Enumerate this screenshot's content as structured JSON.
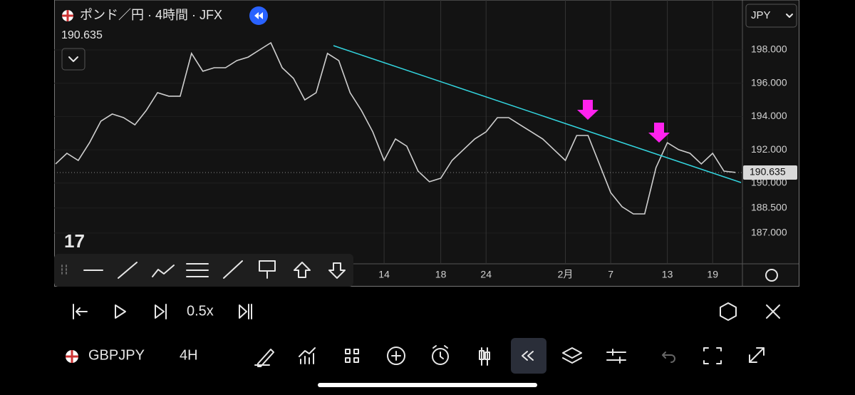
{
  "header": {
    "title": "ポンド／円 · 4時間 · JFX",
    "currency": "JPY"
  },
  "chart_data": {
    "type": "line",
    "categories": [
      null,
      null,
      null,
      null,
      null,
      null,
      null,
      null,
      null,
      null,
      null,
      null,
      null,
      null,
      null,
      null,
      null,
      null,
      null,
      null,
      null,
      null,
      null,
      null,
      null,
      null,
      null,
      null,
      null,
      "14",
      null,
      null,
      null,
      null,
      "18",
      null,
      null,
      null,
      "24",
      null,
      null,
      null,
      null,
      null,
      null,
      "2月",
      null,
      null,
      null,
      "7",
      null,
      null,
      null,
      null,
      "13",
      null,
      null,
      null,
      "19",
      null,
      null
    ],
    "series": [
      {
        "color": "#cfcfcf",
        "values": [
          191.15,
          191.79,
          191.36,
          192.43,
          193.72,
          194.15,
          193.93,
          193.5,
          194.36,
          195.43,
          195.22,
          195.22,
          197.79,
          196.72,
          196.93,
          196.93,
          197.36,
          197.57,
          198.0,
          198.43,
          196.93,
          196.29,
          195.0,
          195.43,
          197.79,
          197.36,
          195.43,
          194.36,
          193.08,
          191.36,
          192.65,
          192.22,
          190.72,
          190.08,
          190.29,
          191.36,
          192.01,
          192.65,
          193.08,
          193.93,
          193.93,
          193.5,
          193.08,
          192.65,
          192.01,
          191.36,
          192.86,
          192.86,
          191.15,
          189.43,
          188.58,
          188.15,
          188.15,
          190.93,
          192.43,
          192.01,
          191.79,
          191.15,
          191.79,
          190.72,
          190.64
        ]
      }
    ],
    "ylim": [
      185.15,
      201.0
    ],
    "yticks": [
      {
        "value": 187,
        "label": "187.000"
      },
      {
        "value": 188.5,
        "label": "188.500"
      },
      {
        "value": 190,
        "label": "190.000"
      },
      {
        "value": 192,
        "label": "192.000"
      },
      {
        "value": 194,
        "label": "194.000"
      },
      {
        "value": 196,
        "label": "196.000"
      },
      {
        "value": 198,
        "label": "198.000"
      }
    ],
    "last_price": 190.635,
    "grid": true
  },
  "replay": {
    "speed": "0.5x"
  },
  "bottom_bar": {
    "symbol": "GBPJPY",
    "interval": "4H"
  }
}
